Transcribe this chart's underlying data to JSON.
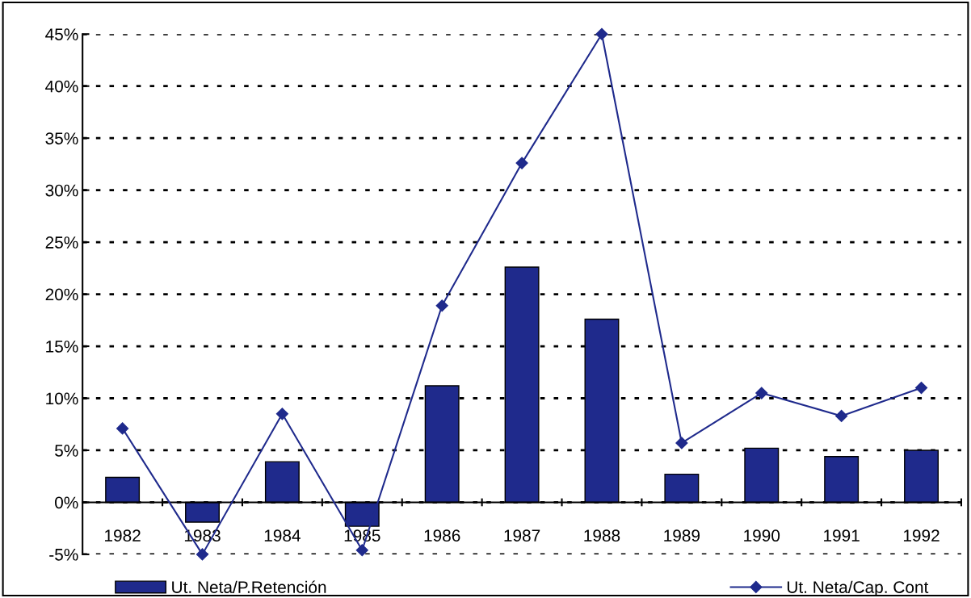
{
  "chart_data": {
    "type": "bar",
    "categories": [
      "1982",
      "1983",
      "1984",
      "1985",
      "1986",
      "1987",
      "1988",
      "1989",
      "1990",
      "1991",
      "1992"
    ],
    "series": [
      {
        "name": "Ut. Neta/P.Retención",
        "color": "#1f2a8c",
        "values": [
          2.4,
          -1.9,
          3.9,
          -2.3,
          11.2,
          22.6,
          17.6,
          2.7,
          5.2,
          4.4,
          5.0
        ]
      },
      {
        "name": "Ut. Neta/Cap. Cont",
        "type": "line",
        "color": "#1f2a8c",
        "marker": "diamond",
        "values": [
          7.1,
          -5.0,
          8.5,
          -4.6,
          18.9,
          32.6,
          45.0,
          5.7,
          10.5,
          8.3,
          11.0
        ]
      }
    ],
    "ylim": [
      -5,
      45
    ],
    "yticks": [
      {
        "value": -5,
        "label": "-5%"
      },
      {
        "value": 0,
        "label": "0%"
      },
      {
        "value": 5,
        "label": "5%"
      },
      {
        "value": 10,
        "label": "10%"
      },
      {
        "value": 15,
        "label": "15%"
      },
      {
        "value": 20,
        "label": "20%"
      },
      {
        "value": 25,
        "label": "25%"
      },
      {
        "value": 30,
        "label": "30%"
      },
      {
        "value": 35,
        "label": "35%"
      },
      {
        "value": 40,
        "label": "40%"
      },
      {
        "value": 45,
        "label": "45%"
      }
    ],
    "grid": "y",
    "legend": "bottom"
  }
}
